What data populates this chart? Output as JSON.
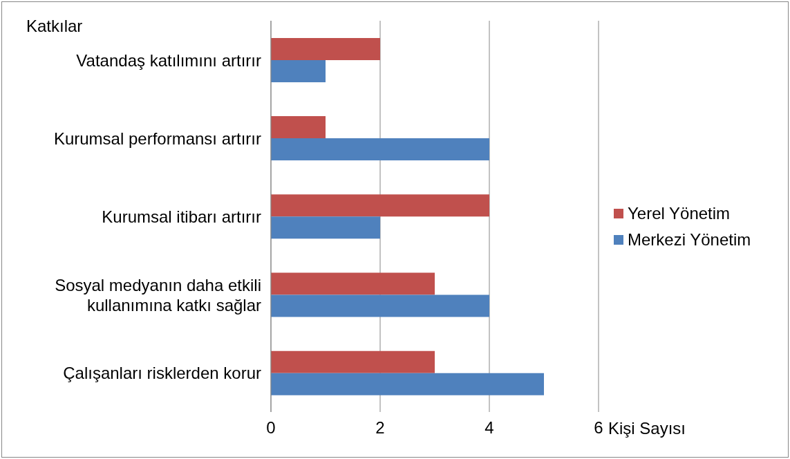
{
  "chart_data": {
    "type": "bar",
    "orientation": "horizontal",
    "ylabel": "Katkılar",
    "xlabel": "Kişi Sayısı",
    "categories": [
      "Vatandaş katılımını artırır",
      "Kurumsal performansı artırır",
      "Kurumsal itibarı artırır",
      "Sosyal medyanın daha etkili kullanımına katkı sağlar",
      "Çalışanları risklerden korur"
    ],
    "series": [
      {
        "name": "Yerel Yönetim",
        "color": "#c0504d",
        "values": [
          2,
          1,
          4,
          3,
          3
        ]
      },
      {
        "name": "Merkezi Yönetim",
        "color": "#4f81bd",
        "values": [
          1,
          4,
          2,
          4,
          5
        ]
      }
    ],
    "xlim": [
      0,
      6
    ],
    "xticks": [
      0,
      2,
      4,
      6
    ],
    "grid": "x",
    "legend": "right"
  }
}
